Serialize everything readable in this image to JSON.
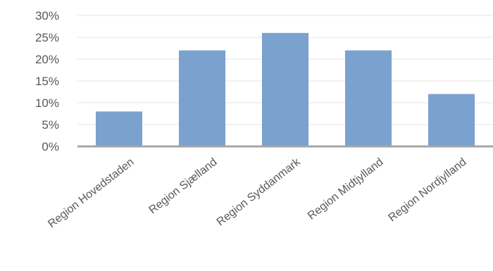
{
  "chart_data": {
    "type": "bar",
    "title": "",
    "xlabel": "",
    "ylabel": "",
    "categories": [
      "Region Hovedstaden",
      "Region Sjælland",
      "Region Syddanmark",
      "Region Midtjylland",
      "Region Nordjylland"
    ],
    "values": [
      0.08,
      0.22,
      0.26,
      0.22,
      0.12
    ],
    "ylim": [
      0,
      0.3
    ],
    "yticks": [
      0,
      0.05,
      0.1,
      0.15,
      0.2,
      0.25,
      0.3
    ],
    "ytick_labels": [
      "0%",
      "5%",
      "10%",
      "15%",
      "20%",
      "25%",
      "30%"
    ],
    "grid": true,
    "legend": "none",
    "bar_color": "#7ba1cf"
  }
}
